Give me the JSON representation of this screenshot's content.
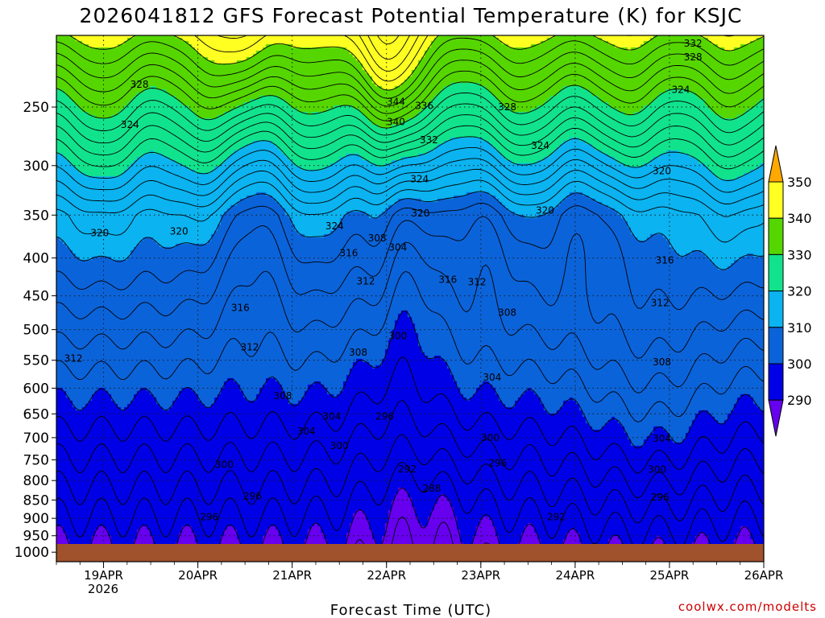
{
  "chart_data": {
    "type": "heatmap",
    "title": "2026041812 GFS Forecast Potential Temperature (K) for KSJC",
    "xlabel": "Forecast Time (UTC)",
    "ylabel": "",
    "x_ticks": [
      "19APR",
      "20APR",
      "21APR",
      "22APR",
      "23APR",
      "24APR",
      "25APR",
      "26APR"
    ],
    "x_year_label": "2026",
    "x_range": [
      18.5,
      26.0
    ],
    "y_ticks": [
      250,
      300,
      350,
      400,
      450,
      500,
      550,
      600,
      650,
      700,
      750,
      800,
      850,
      900,
      950,
      1000
    ],
    "y_range": [
      200,
      1030
    ],
    "y_scale": "log",
    "y_inverted": true,
    "grid": true,
    "colorbar": {
      "levels": [
        290,
        300,
        310,
        320,
        330,
        340,
        350
      ],
      "colors": [
        "#6600ee",
        "#0000e6",
        "#0b63d9",
        "#0bb3f0",
        "#11e38c",
        "#55d600",
        "#ffff22",
        "#ffa800"
      ],
      "orientation": "vertical",
      "extend": "both"
    },
    "contour_interval": 2,
    "contour_labels": [
      {
        "day": 18.96,
        "p": 370,
        "v": "320"
      },
      {
        "day": 18.68,
        "p": 547,
        "v": "312"
      },
      {
        "day": 19.38,
        "p": 233,
        "v": "328"
      },
      {
        "day": 19.28,
        "p": 264,
        "v": "324"
      },
      {
        "day": 19.8,
        "p": 368,
        "v": "320"
      },
      {
        "day": 20.45,
        "p": 467,
        "v": "316"
      },
      {
        "day": 20.55,
        "p": 528,
        "v": "312"
      },
      {
        "day": 20.9,
        "p": 615,
        "v": "308"
      },
      {
        "day": 21.15,
        "p": 686,
        "v": "304"
      },
      {
        "day": 20.28,
        "p": 762,
        "v": "300"
      },
      {
        "day": 20.58,
        "p": 840,
        "v": "296"
      },
      {
        "day": 20.12,
        "p": 896,
        "v": "296"
      },
      {
        "day": 21.45,
        "p": 362,
        "v": "324"
      },
      {
        "day": 21.6,
        "p": 394,
        "v": "316"
      },
      {
        "day": 21.78,
        "p": 430,
        "v": "312"
      },
      {
        "day": 21.9,
        "p": 376,
        "v": "308"
      },
      {
        "day": 22.12,
        "p": 387,
        "v": "304"
      },
      {
        "day": 21.7,
        "p": 537,
        "v": "308"
      },
      {
        "day": 21.42,
        "p": 655,
        "v": "304"
      },
      {
        "day": 21.5,
        "p": 718,
        "v": "300"
      },
      {
        "day": 22.12,
        "p": 510,
        "v": "300"
      },
      {
        "day": 21.98,
        "p": 655,
        "v": "296"
      },
      {
        "day": 22.22,
        "p": 772,
        "v": "292"
      },
      {
        "day": 22.48,
        "p": 820,
        "v": "288"
      },
      {
        "day": 22.1,
        "p": 246,
        "v": "344"
      },
      {
        "day": 22.4,
        "p": 249,
        "v": "336"
      },
      {
        "day": 22.1,
        "p": 262,
        "v": "340"
      },
      {
        "day": 22.45,
        "p": 277,
        "v": "332"
      },
      {
        "day": 22.35,
        "p": 313,
        "v": "324"
      },
      {
        "day": 22.36,
        "p": 348,
        "v": "320"
      },
      {
        "day": 22.65,
        "p": 428,
        "v": "316"
      },
      {
        "day": 22.96,
        "p": 431,
        "v": "312"
      },
      {
        "day": 23.28,
        "p": 474,
        "v": "308"
      },
      {
        "day": 23.12,
        "p": 580,
        "v": "304"
      },
      {
        "day": 23.1,
        "p": 700,
        "v": "300"
      },
      {
        "day": 23.18,
        "p": 758,
        "v": "296"
      },
      {
        "day": 23.8,
        "p": 896,
        "v": "292"
      },
      {
        "day": 23.28,
        "p": 250,
        "v": "328"
      },
      {
        "day": 23.63,
        "p": 282,
        "v": "324"
      },
      {
        "day": 23.68,
        "p": 345,
        "v": "320"
      },
      {
        "day": 24.92,
        "p": 305,
        "v": "320"
      },
      {
        "day": 24.95,
        "p": 403,
        "v": "316"
      },
      {
        "day": 24.9,
        "p": 460,
        "v": "312"
      },
      {
        "day": 24.92,
        "p": 553,
        "v": "308"
      },
      {
        "day": 24.92,
        "p": 702,
        "v": "304"
      },
      {
        "day": 24.87,
        "p": 773,
        "v": "300"
      },
      {
        "day": 24.9,
        "p": 843,
        "v": "296"
      },
      {
        "day": 25.12,
        "p": 237,
        "v": "324"
      },
      {
        "day": 25.25,
        "p": 214,
        "v": "328"
      },
      {
        "day": 25.25,
        "p": 205,
        "v": "332"
      }
    ]
  },
  "credit": "coolwx.com/modelts"
}
